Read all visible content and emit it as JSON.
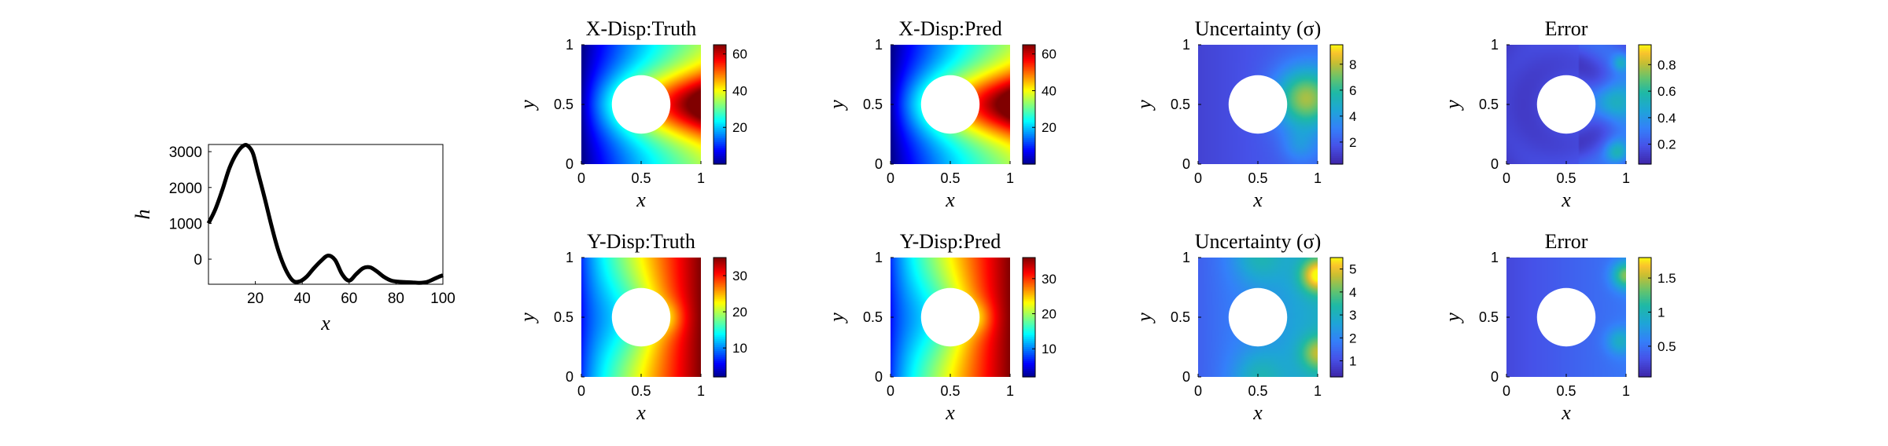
{
  "chart_data": [
    {
      "type": "line",
      "title": "",
      "xlabel": "x",
      "ylabel": "h",
      "xlim": [
        0,
        100
      ],
      "ylim": [
        -700,
        3200
      ],
      "xticks": [
        20,
        40,
        60,
        80,
        100
      ],
      "yticks": [
        0,
        1000,
        2000,
        3000
      ],
      "x": [
        0,
        3,
        6,
        9,
        12,
        15,
        17,
        19,
        21,
        24,
        27,
        30,
        33,
        36,
        39,
        42,
        45,
        48,
        51,
        54,
        57,
        60,
        63,
        66,
        69,
        72,
        75,
        78,
        81,
        84,
        87,
        90,
        93,
        96,
        98,
        100
      ],
      "y": [
        1000,
        1400,
        1950,
        2550,
        2950,
        3170,
        3150,
        2950,
        2450,
        1700,
        900,
        200,
        -300,
        -600,
        -620,
        -480,
        -250,
        -50,
        100,
        -20,
        -420,
        -600,
        -420,
        -250,
        -230,
        -350,
        -500,
        -600,
        -630,
        -640,
        -650,
        -660,
        -640,
        -560,
        -500,
        -450
      ]
    },
    {
      "type": "heatmap",
      "title": "X-Disp:Truth",
      "xlabel": "x",
      "ylabel": "y",
      "xlim": [
        0,
        1
      ],
      "ylim": [
        0,
        1
      ],
      "colormap": "jet",
      "colorbar_ticks": [
        20,
        40,
        60
      ],
      "clim": [
        0,
        65
      ],
      "field": "x-disp"
    },
    {
      "type": "heatmap",
      "title": "X-Disp:Pred",
      "xlabel": "x",
      "ylabel": "y",
      "xlim": [
        0,
        1
      ],
      "ylim": [
        0,
        1
      ],
      "colormap": "jet",
      "colorbar_ticks": [
        20,
        40,
        60
      ],
      "clim": [
        0,
        65
      ],
      "field": "x-disp"
    },
    {
      "type": "heatmap",
      "title": "Uncertainty (σ)",
      "xlabel": "x",
      "ylabel": "y",
      "xlim": [
        0,
        1
      ],
      "ylim": [
        0,
        1
      ],
      "colormap": "parula",
      "colorbar_ticks": [
        2,
        4,
        6,
        8
      ],
      "clim": [
        0.3,
        9.5
      ],
      "field": "sigma-x"
    },
    {
      "type": "heatmap",
      "title": "Error",
      "xlabel": "x",
      "ylabel": "y",
      "xlim": [
        0,
        1
      ],
      "ylim": [
        0,
        1
      ],
      "colormap": "parula",
      "colorbar_ticks": [
        0.2,
        0.4,
        0.6,
        0.8
      ],
      "clim": [
        0.05,
        0.95
      ],
      "field": "error-x"
    },
    {
      "type": "heatmap",
      "title": "Y-Disp:Truth",
      "xlabel": "x",
      "ylabel": "y",
      "xlim": [
        0,
        1
      ],
      "ylim": [
        0,
        1
      ],
      "colormap": "jet",
      "colorbar_ticks": [
        10,
        20,
        30
      ],
      "clim": [
        2,
        35
      ],
      "field": "y-disp"
    },
    {
      "type": "heatmap",
      "title": "Y-Disp:Pred",
      "xlabel": "x",
      "ylabel": "y",
      "xlim": [
        0,
        1
      ],
      "ylim": [
        0,
        1
      ],
      "colormap": "jet",
      "colorbar_ticks": [
        10,
        20,
        30
      ],
      "clim": [
        2,
        36
      ],
      "field": "y-disp"
    },
    {
      "type": "heatmap",
      "title": "Uncertainty (σ)",
      "xlabel": "x",
      "ylabel": "y",
      "xlim": [
        0,
        1
      ],
      "ylim": [
        0,
        1
      ],
      "colormap": "parula",
      "colorbar_ticks": [
        1,
        2,
        3,
        4,
        5
      ],
      "clim": [
        0.3,
        5.5
      ],
      "field": "sigma-y"
    },
    {
      "type": "heatmap",
      "title": "Error",
      "xlabel": "x",
      "ylabel": "y",
      "xlim": [
        0,
        1
      ],
      "ylim": [
        0,
        1
      ],
      "colormap": "parula",
      "colorbar_ticks": [
        0.5,
        1,
        1.5
      ],
      "clim": [
        0.05,
        1.8
      ],
      "field": "error-y"
    }
  ],
  "hole": {
    "center": [
      0.5,
      0.5
    ],
    "radius": 0.25
  }
}
